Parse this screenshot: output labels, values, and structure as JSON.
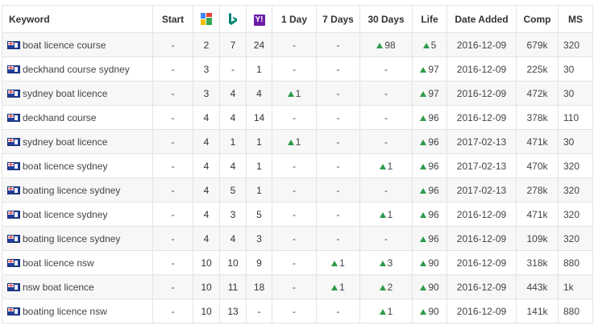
{
  "headers": {
    "keyword": "Keyword",
    "start": "Start",
    "google_icon": "google-icon",
    "bing_icon": "bing-icon",
    "yahoo_icon": "yahoo-icon",
    "yahoo_glyph": "Y!",
    "day1": "1 Day",
    "days7": "7 Days",
    "days30": "30 Days",
    "life": "Life",
    "date_added": "Date Added",
    "comp": "Comp",
    "ms": "MS"
  },
  "colors": {
    "up_arrow": "#2e9c4a",
    "stripe": "#f7f7f7",
    "yahoo": "#6b1fa8"
  },
  "flag_icon": "australia-flag-icon",
  "rows": [
    {
      "keyword": "boat licence course",
      "start": "-",
      "google": "2",
      "bing": "7",
      "yahoo": "24",
      "d1": "-",
      "d1_up": false,
      "d7": "-",
      "d7_up": false,
      "d30": "98",
      "d30_up": true,
      "life": "5",
      "life_up": true,
      "date": "2016-12-09",
      "comp": "679",
      "comp_unit": "k",
      "ms": "320"
    },
    {
      "keyword": "deckhand course sydney",
      "start": "-",
      "google": "3",
      "bing": "-",
      "yahoo": "1",
      "d1": "-",
      "d1_up": false,
      "d7": "-",
      "d7_up": false,
      "d30": "-",
      "d30_up": false,
      "life": "97",
      "life_up": true,
      "date": "2016-12-09",
      "comp": "225",
      "comp_unit": "k",
      "ms": "30"
    },
    {
      "keyword": "sydney boat licence",
      "start": "-",
      "google": "3",
      "bing": "4",
      "yahoo": "4",
      "d1": "1",
      "d1_up": true,
      "d7": "-",
      "d7_up": false,
      "d30": "-",
      "d30_up": false,
      "life": "97",
      "life_up": true,
      "date": "2016-12-09",
      "comp": "472",
      "comp_unit": "k",
      "ms": "30"
    },
    {
      "keyword": "deckhand course",
      "start": "-",
      "google": "4",
      "bing": "4",
      "yahoo": "14",
      "d1": "-",
      "d1_up": false,
      "d7": "-",
      "d7_up": false,
      "d30": "-",
      "d30_up": false,
      "life": "96",
      "life_up": true,
      "date": "2016-12-09",
      "comp": "378",
      "comp_unit": "k",
      "ms": "110"
    },
    {
      "keyword": "sydney boat licence",
      "start": "-",
      "google": "4",
      "bing": "1",
      "yahoo": "1",
      "d1": "1",
      "d1_up": true,
      "d7": "-",
      "d7_up": false,
      "d30": "-",
      "d30_up": false,
      "life": "96",
      "life_up": true,
      "date": "2017-02-13",
      "comp": "471",
      "comp_unit": "k",
      "ms": "30"
    },
    {
      "keyword": "boat licence sydney",
      "start": "-",
      "google": "4",
      "bing": "4",
      "yahoo": "1",
      "d1": "-",
      "d1_up": false,
      "d7": "-",
      "d7_up": false,
      "d30": "1",
      "d30_up": true,
      "life": "96",
      "life_up": true,
      "date": "2017-02-13",
      "comp": "470",
      "comp_unit": "k",
      "ms": "320"
    },
    {
      "keyword": "boating licence sydney",
      "start": "-",
      "google": "4",
      "bing": "5",
      "yahoo": "1",
      "d1": "-",
      "d1_up": false,
      "d7": "-",
      "d7_up": false,
      "d30": "-",
      "d30_up": false,
      "life": "96",
      "life_up": true,
      "date": "2017-02-13",
      "comp": "278",
      "comp_unit": "k",
      "ms": "320"
    },
    {
      "keyword": "boat licence sydney",
      "start": "-",
      "google": "4",
      "bing": "3",
      "yahoo": "5",
      "d1": "-",
      "d1_up": false,
      "d7": "-",
      "d7_up": false,
      "d30": "1",
      "d30_up": true,
      "life": "96",
      "life_up": true,
      "date": "2016-12-09",
      "comp": "471",
      "comp_unit": "k",
      "ms": "320"
    },
    {
      "keyword": "boating licence sydney",
      "start": "-",
      "google": "4",
      "bing": "4",
      "yahoo": "3",
      "d1": "-",
      "d1_up": false,
      "d7": "-",
      "d7_up": false,
      "d30": "-",
      "d30_up": false,
      "life": "96",
      "life_up": true,
      "date": "2016-12-09",
      "comp": "109",
      "comp_unit": "k",
      "ms": "320"
    },
    {
      "keyword": "boat licence nsw",
      "start": "-",
      "google": "10",
      "bing": "10",
      "yahoo": "9",
      "d1": "-",
      "d1_up": false,
      "d7": "1",
      "d7_up": true,
      "d30": "3",
      "d30_up": true,
      "life": "90",
      "life_up": true,
      "date": "2016-12-09",
      "comp": "318",
      "comp_unit": "k",
      "ms": "880"
    },
    {
      "keyword": "nsw boat licence",
      "start": "-",
      "google": "10",
      "bing": "11",
      "yahoo": "18",
      "d1": "-",
      "d1_up": false,
      "d7": "1",
      "d7_up": true,
      "d30": "2",
      "d30_up": true,
      "life": "90",
      "life_up": true,
      "date": "2016-12-09",
      "comp": "443",
      "comp_unit": "k",
      "ms": "1k"
    },
    {
      "keyword": "boating licence nsw",
      "start": "-",
      "google": "10",
      "bing": "13",
      "yahoo": "-",
      "d1": "-",
      "d1_up": false,
      "d7": "-",
      "d7_up": false,
      "d30": "1",
      "d30_up": true,
      "life": "90",
      "life_up": true,
      "date": "2016-12-09",
      "comp": "141",
      "comp_unit": "k",
      "ms": "880"
    }
  ]
}
